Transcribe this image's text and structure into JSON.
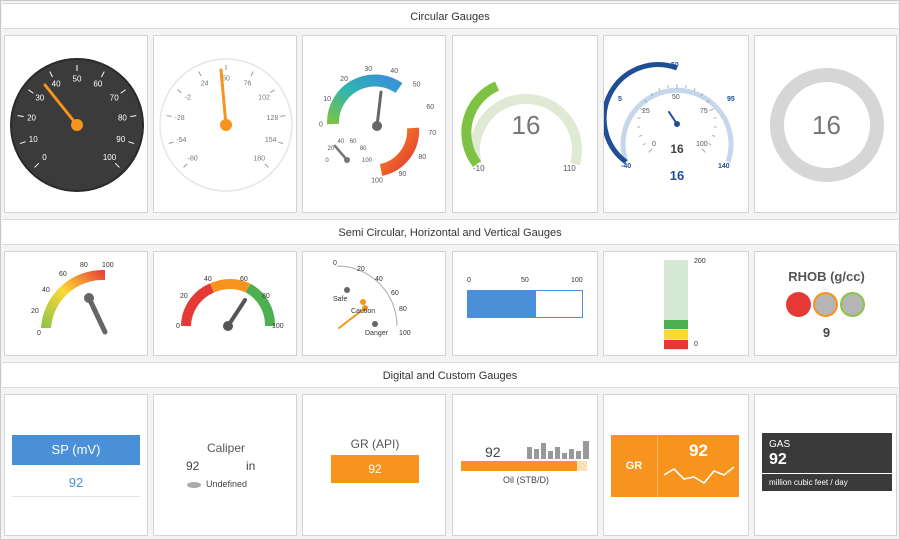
{
  "sections": {
    "circular": "Circular Gauges",
    "semi": "Semi Circular, Horizontal and Vertical Gauges",
    "digital": "Digital and Custom Gauges"
  },
  "colors": {
    "orange": "#f7941d",
    "blue": "#4a90d9",
    "dark_blue": "#1f4e96",
    "green": "#8bc34a",
    "red": "#e53935",
    "yellow": "#fdd835",
    "dark": "#3a3a3a",
    "light_green": "#d5e8d4"
  },
  "gauge1": {
    "ticks": [
      "0",
      "10",
      "20",
      "30",
      "40",
      "50",
      "60",
      "70",
      "80",
      "90",
      "100"
    ]
  },
  "gauge2": {
    "ticks": [
      "-80",
      "-54",
      "-28",
      "-2",
      "24",
      "50",
      "76",
      "102",
      "128",
      "154",
      "180"
    ]
  },
  "gauge3": {
    "outer_ticks": [
      "0",
      "10",
      "20",
      "30",
      "40",
      "50",
      "60",
      "70",
      "80",
      "90",
      "100"
    ],
    "inner_ticks": [
      "0",
      "20",
      "40",
      "60",
      "80",
      "100"
    ]
  },
  "gauge4": {
    "value": "16",
    "min": "-10",
    "max": "110"
  },
  "gauge5": {
    "outer_ticks": [
      "-40",
      "5",
      "50",
      "95",
      "140"
    ],
    "inner_ticks": [
      "0",
      "25",
      "50",
      "75",
      "100"
    ],
    "value_inner": "16",
    "value_outer": "16"
  },
  "gauge6": {
    "value": "16"
  },
  "semi1": {
    "ticks": [
      "0",
      "20",
      "40",
      "60",
      "80",
      "100"
    ]
  },
  "semi2": {
    "ticks": [
      "0",
      "20",
      "40",
      "60",
      "80",
      "100"
    ]
  },
  "semi3": {
    "ticks": [
      "0",
      "20",
      "40",
      "60",
      "80",
      "100"
    ],
    "labels": [
      "Safe",
      "Caution",
      "Danger"
    ]
  },
  "hbar": {
    "ticks": [
      "0",
      "50",
      "100"
    ],
    "value": 60,
    "max": 100
  },
  "vbar": {
    "top": "200",
    "bottom": "0"
  },
  "rhob": {
    "title": "RHOB (g/cc)",
    "value": "9"
  },
  "sp": {
    "title": "SP (mV)",
    "value": "92"
  },
  "caliper": {
    "title": "Caliper",
    "value": "92",
    "unit": "in",
    "status": "Undefined"
  },
  "gr_api": {
    "title": "GR (API)",
    "value": "92"
  },
  "oil": {
    "value": "92",
    "label": "Oil (STB/D)"
  },
  "gr_spark": {
    "label": "GR",
    "value": "92"
  },
  "gas": {
    "title": "GAS",
    "value": "92",
    "unit": "million cubic feet / day"
  }
}
